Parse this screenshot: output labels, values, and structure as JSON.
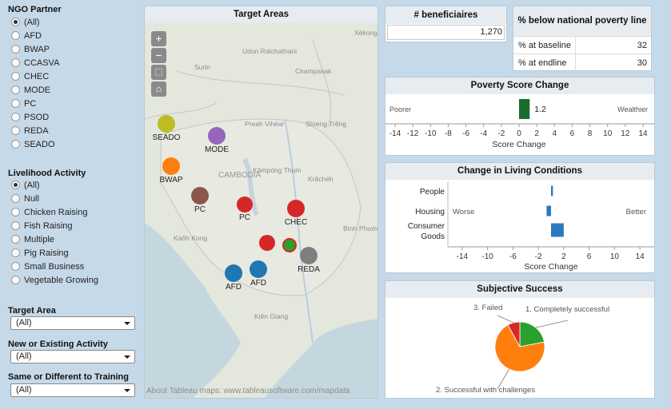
{
  "sidebar": {
    "ngo_partner": {
      "title": "NGO Partner",
      "options": [
        "(All)",
        "AFD",
        "BWAP",
        "CCASVA",
        "CHEC",
        "MODE",
        "PC",
        "PSOD",
        "REDA",
        "SEADO"
      ],
      "selected": "(All)"
    },
    "livelihood_activity": {
      "title": "Livelihood Activity",
      "options": [
        "(All)",
        "Null",
        "Chicken Raising",
        "Fish Raising",
        "Multiple",
        "Pig Raising",
        "Small Business",
        "Vegetable Growing"
      ],
      "selected": "(All)"
    },
    "target_area": {
      "title": "Target Area",
      "value": "(All)"
    },
    "new_or_existing": {
      "title": "New or Existing Activity",
      "value": "(All)"
    },
    "same_or_different": {
      "title": "Same or Different to Training",
      "value": "(All)"
    }
  },
  "map": {
    "title": "Target Areas",
    "credit": "About Tableau maps: www.tableausoftware.com/mapdata",
    "controls": [
      "+",
      "−",
      "⬚",
      "⌂"
    ],
    "places": [
      "Xékong",
      "Udon Ratchathani",
      "Surin",
      "Champasak",
      "Preah Vihéar",
      "Stoeng Trêng",
      "CAMBODIA",
      "Kâmpóng Thum",
      "Krâchéh",
      "Kaôh Kong",
      "Bình Phước",
      "Kiên Giang"
    ],
    "markers": [
      {
        "label": "SEADO",
        "color": "#bcbd22"
      },
      {
        "label": "MODE",
        "color": "#9467bd"
      },
      {
        "label": "BWAP",
        "color": "#ff7f0e"
      },
      {
        "label": "PC",
        "color": "#8c564b"
      },
      {
        "label": "PC",
        "color": "#d62728"
      },
      {
        "label": "CHEC",
        "color": "#d62728"
      },
      {
        "label": "",
        "color": "#d62728"
      },
      {
        "label": "",
        "color": "#2ca02c"
      },
      {
        "label": "REDA",
        "color": "#7f7f7f"
      },
      {
        "label": "AFD",
        "color": "#1f77b4"
      },
      {
        "label": "AFD",
        "color": "#1f77b4"
      }
    ]
  },
  "beneficiaries": {
    "title": "# beneficiaires",
    "value": "1,270"
  },
  "poverty_line": {
    "title": "% below national poverty line",
    "rows": [
      {
        "label": "% at baseline",
        "value": "32"
      },
      {
        "label": "% at endline",
        "value": "30"
      }
    ]
  },
  "colors": {
    "poverty_bar": "#1b6b2f",
    "living_bar": "#2e78c0"
  },
  "chart_data": [
    {
      "type": "bar",
      "title": "Poverty Score Change",
      "categories": [
        ""
      ],
      "values": [
        1.2
      ],
      "data_labels": [
        "1.2"
      ],
      "xlabel": "Score Change",
      "xlim": [
        -14,
        14
      ],
      "xticks": [
        "-14",
        "-12",
        "-10",
        "-8",
        "-6",
        "-4",
        "-2",
        "0",
        "2",
        "4",
        "6",
        "8",
        "10",
        "12",
        "14"
      ],
      "left_annotation": "Poorer",
      "right_annotation": "Wealthier"
    },
    {
      "type": "bar",
      "title": "Change in Living Conditions",
      "categories": [
        "People",
        "Housing",
        "Consumer Goods"
      ],
      "values": [
        0.3,
        -0.7,
        2.0
      ],
      "xlabel": "Score Change",
      "xlim": [
        -16,
        16
      ],
      "xticks": [
        "-14",
        "-10",
        "-6",
        "-2",
        "2",
        "6",
        "10",
        "14"
      ],
      "left_annotation": "Worse",
      "right_annotation": "Better"
    },
    {
      "type": "pie",
      "title": "Subjective Success",
      "categories": [
        "1. Completely successful",
        "2. Successful with challenges",
        "3. Failed"
      ],
      "values": [
        22,
        70,
        8
      ],
      "colors": [
        "#2ca02c",
        "#ff7f0e",
        "#d62728"
      ]
    }
  ]
}
